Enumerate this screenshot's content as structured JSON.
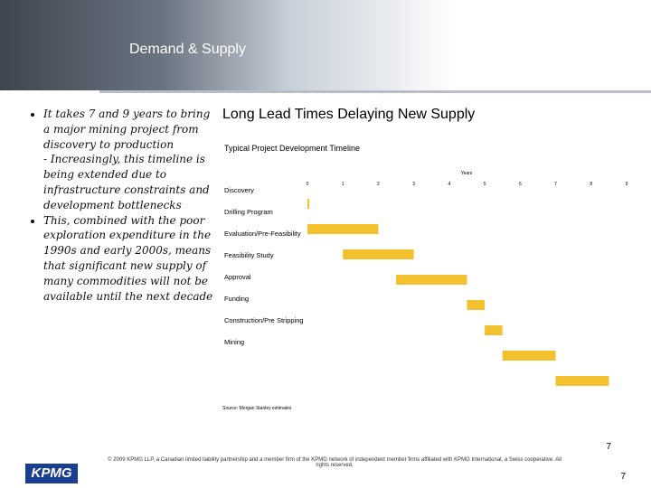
{
  "header": {
    "title": "Demand & Supply"
  },
  "bullets": [
    {
      "text": "It takes 7 and 9 years to bring a major mining project from discovery to production",
      "sub": "- Increasingly, this timeline is being extended due to infrastructure constraints and development bottlenecks"
    },
    {
      "text": "This, combined with the poor exploration expenditure in the 1990s and early 2000s, means that significant new supply of many commodities will not be available until the next decade"
    }
  ],
  "chart_data": {
    "type": "gantt",
    "title": "Long Lead Times Delaying New Supply",
    "subtitle": "Typical Project Development Timeline",
    "x_label": "Years",
    "categories": [
      "Discovery",
      "Drilling Program",
      "Evaluation/Pre-Feasibility",
      "Feasibility Study",
      "Approval",
      "Funding",
      "Construction/Pre Stripping",
      "Mining"
    ],
    "start": [
      0,
      0,
      1,
      2.5,
      4.5,
      5,
      5.5,
      7
    ],
    "end": [
      0.05,
      2,
      3,
      4.5,
      5,
      5.5,
      7,
      8.5
    ],
    "color": "#f4c12e",
    "xlim": [
      0,
      9
    ],
    "xticks": [
      0,
      1,
      2,
      3,
      4,
      5,
      6,
      7,
      8,
      9
    ],
    "source": "Source: Morgan Stanley estimates"
  },
  "footer": {
    "page_number": "7",
    "page_number_bottom": "7",
    "logo": "KPMG",
    "copyright": "© 2009 KPMG LLP, a Canadian limited liability partnership and a member firm of the KPMG network of independent member firms affiliated with KPMG International, a Swiss cooperative. All rights reserved."
  }
}
